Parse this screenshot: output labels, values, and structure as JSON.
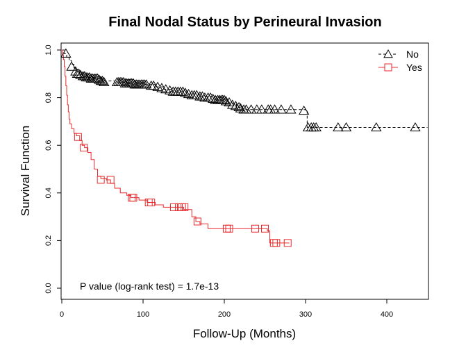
{
  "chart_data": {
    "type": "line",
    "subtype": "kaplan-meier",
    "title": "Final Nodal Status by Perineural Invasion",
    "xlabel": "Follow-Up (Months)",
    "ylabel": "Survival Function",
    "xlim": [
      0,
      450
    ],
    "ylim": [
      0,
      1.0
    ],
    "xticks": [
      "0",
      "100",
      "200",
      "300",
      "400"
    ],
    "yticks": [
      "0.0",
      "0.2",
      "0.4",
      "0.6",
      "0.8",
      "1.0"
    ],
    "annotation": "P value (log-rank test) = 1.7e-13",
    "grid": false,
    "legend_position": "top-right",
    "series": [
      {
        "name": "No",
        "color": "#000000",
        "line_style": "dashed",
        "marker": "triangle",
        "steps": [
          [
            0,
            1.0
          ],
          [
            3,
            0.985
          ],
          [
            6,
            0.97
          ],
          [
            9,
            0.955
          ],
          [
            12,
            0.94
          ],
          [
            15,
            0.925
          ],
          [
            18,
            0.91
          ],
          [
            22,
            0.9
          ],
          [
            27,
            0.89
          ],
          [
            32,
            0.885
          ],
          [
            40,
            0.88
          ],
          [
            50,
            0.87
          ],
          [
            65,
            0.865
          ],
          [
            80,
            0.86
          ],
          [
            100,
            0.855
          ],
          [
            115,
            0.845
          ],
          [
            125,
            0.835
          ],
          [
            135,
            0.825
          ],
          [
            155,
            0.815
          ],
          [
            170,
            0.805
          ],
          [
            190,
            0.79
          ],
          [
            205,
            0.775
          ],
          [
            215,
            0.76
          ],
          [
            222,
            0.75
          ],
          [
            300,
            0.745
          ],
          [
            302,
            0.675
          ],
          [
            450,
            0.675
          ]
        ],
        "censored": [
          [
            5,
            0.985
          ],
          [
            12,
            0.93
          ],
          [
            17,
            0.91
          ],
          [
            19,
            0.9
          ],
          [
            21,
            0.9
          ],
          [
            23,
            0.895
          ],
          [
            26,
            0.89
          ],
          [
            28,
            0.89
          ],
          [
            30,
            0.885
          ],
          [
            32,
            0.885
          ],
          [
            34,
            0.885
          ],
          [
            36,
            0.88
          ],
          [
            38,
            0.88
          ],
          [
            40,
            0.88
          ],
          [
            42,
            0.88
          ],
          [
            44,
            0.88
          ],
          [
            46,
            0.875
          ],
          [
            48,
            0.87
          ],
          [
            50,
            0.87
          ],
          [
            52,
            0.865
          ],
          [
            68,
            0.865
          ],
          [
            70,
            0.865
          ],
          [
            72,
            0.865
          ],
          [
            74,
            0.865
          ],
          [
            76,
            0.865
          ],
          [
            78,
            0.86
          ],
          [
            80,
            0.86
          ],
          [
            82,
            0.86
          ],
          [
            84,
            0.86
          ],
          [
            86,
            0.86
          ],
          [
            88,
            0.86
          ],
          [
            90,
            0.855
          ],
          [
            92,
            0.855
          ],
          [
            94,
            0.855
          ],
          [
            96,
            0.855
          ],
          [
            98,
            0.855
          ],
          [
            100,
            0.855
          ],
          [
            102,
            0.855
          ],
          [
            104,
            0.855
          ],
          [
            110,
            0.85
          ],
          [
            113,
            0.85
          ],
          [
            118,
            0.845
          ],
          [
            123,
            0.84
          ],
          [
            128,
            0.835
          ],
          [
            133,
            0.83
          ],
          [
            137,
            0.825
          ],
          [
            140,
            0.825
          ],
          [
            143,
            0.825
          ],
          [
            146,
            0.825
          ],
          [
            149,
            0.825
          ],
          [
            152,
            0.82
          ],
          [
            156,
            0.815
          ],
          [
            160,
            0.81
          ],
          [
            163,
            0.81
          ],
          [
            166,
            0.81
          ],
          [
            170,
            0.805
          ],
          [
            173,
            0.805
          ],
          [
            176,
            0.8
          ],
          [
            180,
            0.8
          ],
          [
            183,
            0.8
          ],
          [
            186,
            0.795
          ],
          [
            189,
            0.79
          ],
          [
            192,
            0.79
          ],
          [
            194,
            0.79
          ],
          [
            196,
            0.79
          ],
          [
            198,
            0.79
          ],
          [
            200,
            0.79
          ],
          [
            202,
            0.785
          ],
          [
            206,
            0.78
          ],
          [
            210,
            0.77
          ],
          [
            214,
            0.765
          ],
          [
            218,
            0.76
          ],
          [
            220,
            0.755
          ],
          [
            224,
            0.75
          ],
          [
            227,
            0.75
          ],
          [
            233,
            0.75
          ],
          [
            240,
            0.75
          ],
          [
            246,
            0.75
          ],
          [
            254,
            0.75
          ],
          [
            257,
            0.75
          ],
          [
            262,
            0.75
          ],
          [
            270,
            0.75
          ],
          [
            282,
            0.75
          ],
          [
            298,
            0.745
          ],
          [
            303,
            0.675
          ],
          [
            307,
            0.675
          ],
          [
            310,
            0.675
          ],
          [
            313,
            0.675
          ],
          [
            340,
            0.675
          ],
          [
            350,
            0.675
          ],
          [
            387,
            0.675
          ],
          [
            435,
            0.675
          ]
        ]
      },
      {
        "name": "Yes",
        "color": "#e8292b",
        "line_style": "solid",
        "marker": "square",
        "steps": [
          [
            0,
            1.0
          ],
          [
            1,
            0.98
          ],
          [
            2,
            0.96
          ],
          [
            3,
            0.93
          ],
          [
            4,
            0.89
          ],
          [
            5,
            0.85
          ],
          [
            6,
            0.81
          ],
          [
            7,
            0.77
          ],
          [
            8,
            0.74
          ],
          [
            9,
            0.71
          ],
          [
            10,
            0.69
          ],
          [
            12,
            0.67
          ],
          [
            15,
            0.65
          ],
          [
            18,
            0.64
          ],
          [
            22,
            0.62
          ],
          [
            25,
            0.6
          ],
          [
            28,
            0.59
          ],
          [
            32,
            0.57
          ],
          [
            36,
            0.54
          ],
          [
            40,
            0.5
          ],
          [
            44,
            0.47
          ],
          [
            48,
            0.46
          ],
          [
            55,
            0.455
          ],
          [
            60,
            0.44
          ],
          [
            65,
            0.42
          ],
          [
            72,
            0.4
          ],
          [
            80,
            0.39
          ],
          [
            85,
            0.38
          ],
          [
            95,
            0.37
          ],
          [
            105,
            0.36
          ],
          [
            115,
            0.35
          ],
          [
            125,
            0.34
          ],
          [
            150,
            0.33
          ],
          [
            160,
            0.3
          ],
          [
            165,
            0.28
          ],
          [
            170,
            0.27
          ],
          [
            180,
            0.25
          ],
          [
            245,
            0.25
          ],
          [
            253,
            0.24
          ],
          [
            256,
            0.19
          ],
          [
            280,
            0.19
          ]
        ],
        "censored": [
          [
            20,
            0.635
          ],
          [
            27,
            0.59
          ],
          [
            48,
            0.455
          ],
          [
            60,
            0.455
          ],
          [
            86,
            0.38
          ],
          [
            88,
            0.38
          ],
          [
            107,
            0.36
          ],
          [
            110,
            0.36
          ],
          [
            138,
            0.34
          ],
          [
            144,
            0.34
          ],
          [
            148,
            0.34
          ],
          [
            151,
            0.34
          ],
          [
            167,
            0.28
          ],
          [
            203,
            0.25
          ],
          [
            206,
            0.25
          ],
          [
            238,
            0.25
          ],
          [
            250,
            0.25
          ],
          [
            261,
            0.19
          ],
          [
            264,
            0.19
          ],
          [
            278,
            0.19
          ]
        ]
      }
    ]
  }
}
